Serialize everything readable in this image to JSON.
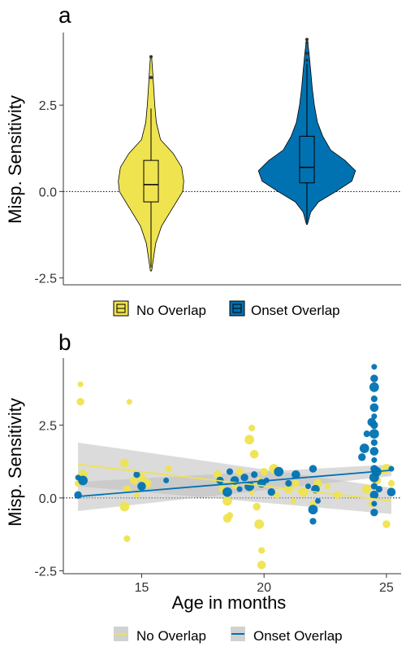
{
  "colors": {
    "no_overlap": "#EFE350",
    "onset_overlap": "#0072B2",
    "ribbon": "#BEBEBE"
  },
  "chart_data": [
    {
      "panel": "a",
      "type": "violin",
      "ylabel": "Misp. Sensitivity",
      "ylim": [
        -2.7,
        4.6
      ],
      "yticks": [
        "-2.5",
        "0.0",
        "2.5"
      ],
      "ytick_values": [
        -2.5,
        0.0,
        2.5
      ],
      "reference_line": 0,
      "legend": [
        "No Overlap",
        "Onset Overlap"
      ],
      "legend_position": "bottom",
      "series": [
        {
          "name": "No Overlap",
          "box": {
            "q1": -0.3,
            "median": 0.2,
            "q3": 0.9,
            "whisker_low": -2.2,
            "whisker_high": 2.4
          },
          "outliers": [
            3.3,
            3.9
          ],
          "violin_profile": [
            [
              -2.3,
              0.01
            ],
            [
              -2.0,
              0.04
            ],
            [
              -1.5,
              0.09
            ],
            [
              -1.0,
              0.2
            ],
            [
              -0.5,
              0.4
            ],
            [
              0.0,
              0.6
            ],
            [
              0.3,
              0.62
            ],
            [
              0.7,
              0.58
            ],
            [
              1.1,
              0.42
            ],
            [
              1.5,
              0.18
            ],
            [
              2.0,
              0.1
            ],
            [
              2.5,
              0.07
            ],
            [
              3.0,
              0.05
            ],
            [
              3.5,
              0.03
            ],
            [
              3.9,
              0.01
            ]
          ]
        },
        {
          "name": "Onset Overlap",
          "box": {
            "q1": 0.25,
            "median": 0.7,
            "q3": 1.6,
            "whisker_low": -0.9,
            "whisker_high": 3.7
          },
          "outliers": [
            3.8,
            4.0,
            4.3,
            4.4
          ],
          "violin_profile": [
            [
              -0.95,
              0.01
            ],
            [
              -0.6,
              0.07
            ],
            [
              -0.3,
              0.22
            ],
            [
              0.0,
              0.55
            ],
            [
              0.3,
              0.85
            ],
            [
              0.6,
              0.92
            ],
            [
              0.9,
              0.72
            ],
            [
              1.2,
              0.45
            ],
            [
              1.6,
              0.3
            ],
            [
              2.0,
              0.2
            ],
            [
              2.5,
              0.14
            ],
            [
              3.0,
              0.1
            ],
            [
              3.5,
              0.07
            ],
            [
              4.0,
              0.04
            ],
            [
              4.4,
              0.01
            ]
          ]
        }
      ]
    },
    {
      "panel": "b",
      "type": "scatter",
      "xlabel": "Age in months",
      "ylabel": "Misp. Sensitivity",
      "xlim": [
        11.8,
        25.6
      ],
      "ylim": [
        -2.6,
        4.8
      ],
      "xticks": [
        "15",
        "20",
        "25"
      ],
      "xtick_values": [
        15,
        20,
        25
      ],
      "yticks": [
        "-2.5",
        "0.0",
        "2.5"
      ],
      "ytick_values": [
        -2.5,
        0.0,
        2.5
      ],
      "reference_line": 0,
      "legend": [
        "No Overlap",
        "Onset Overlap"
      ],
      "legend_position": "bottom",
      "series": [
        {
          "name": "No Overlap",
          "regression": {
            "x": [
              12.4,
              25.2
            ],
            "y": [
              1.15,
              -0.1
            ],
            "ci_lower": [
              0.4,
              -0.55
            ],
            "ci_upper": [
              1.9,
              0.35
            ]
          },
          "points": [
            [
              12.5,
              3.9
            ],
            [
              12.5,
              3.3
            ],
            [
              12.6,
              0.8
            ],
            [
              12.4,
              0.5
            ],
            [
              14.3,
              1.2
            ],
            [
              14.5,
              3.3
            ],
            [
              14.4,
              0.3
            ],
            [
              14.3,
              -0.3
            ],
            [
              14.4,
              -1.4
            ],
            [
              14.7,
              0.6
            ],
            [
              14.8,
              0.1
            ],
            [
              15.0,
              0.7
            ],
            [
              15.2,
              0.5
            ],
            [
              16.1,
              1.0
            ],
            [
              18.1,
              0.8
            ],
            [
              18.2,
              0.5
            ],
            [
              18.3,
              0.3
            ],
            [
              18.5,
              -0.1
            ],
            [
              18.6,
              -0.6
            ],
            [
              18.5,
              -0.7
            ],
            [
              18.8,
              0.4
            ],
            [
              19.0,
              0.9
            ],
            [
              19.4,
              2.0
            ],
            [
              19.5,
              2.4
            ],
            [
              19.6,
              1.5
            ],
            [
              19.5,
              0.2
            ],
            [
              19.7,
              -0.3
            ],
            [
              19.8,
              -0.9
            ],
            [
              19.9,
              -1.8
            ],
            [
              19.9,
              -2.3
            ],
            [
              19.8,
              0.6
            ],
            [
              20.0,
              0.9
            ],
            [
              20.4,
              1.0
            ],
            [
              20.5,
              0.1
            ],
            [
              21.0,
              0.3
            ],
            [
              21.2,
              -0.1
            ],
            [
              21.3,
              0.5
            ],
            [
              21.6,
              0.2
            ],
            [
              22.0,
              -0.2
            ],
            [
              22.2,
              0.5
            ],
            [
              22.6,
              0.4
            ],
            [
              23.0,
              0.1
            ],
            [
              24.2,
              0.3
            ],
            [
              24.4,
              -0.2
            ],
            [
              24.6,
              0.6
            ],
            [
              24.8,
              0.9
            ],
            [
              25.0,
              -0.9
            ],
            [
              25.0,
              1.0
            ],
            [
              25.2,
              0.5
            ]
          ]
        },
        {
          "name": "Onset Overlap",
          "regression": {
            "x": [
              12.4,
              25.2
            ],
            "y": [
              0.05,
              0.95
            ],
            "ci_lower": [
              -0.45,
              0.75
            ],
            "ci_upper": [
              0.55,
              1.15
            ]
          },
          "points": [
            [
              12.4,
              0.7
            ],
            [
              12.4,
              0.1
            ],
            [
              12.6,
              0.6
            ],
            [
              14.8,
              0.8
            ],
            [
              15.0,
              0.4
            ],
            [
              16.0,
              0.6
            ],
            [
              18.2,
              0.6
            ],
            [
              18.5,
              0.2
            ],
            [
              18.6,
              0.9
            ],
            [
              18.8,
              0.6
            ],
            [
              19.0,
              0.3
            ],
            [
              19.2,
              0.7
            ],
            [
              19.4,
              0.4
            ],
            [
              19.6,
              0.8
            ],
            [
              19.9,
              0.5
            ],
            [
              20.1,
              0.6
            ],
            [
              20.3,
              0.2
            ],
            [
              20.6,
              0.9
            ],
            [
              21.0,
              0.5
            ],
            [
              21.3,
              0.8
            ],
            [
              21.8,
              0.4
            ],
            [
              22.0,
              1.0
            ],
            [
              22.0,
              -0.4
            ],
            [
              22.0,
              -0.8
            ],
            [
              22.1,
              0.3
            ],
            [
              22.2,
              -0.1
            ],
            [
              24.0,
              1.4
            ],
            [
              24.1,
              1.7
            ],
            [
              24.2,
              2.2
            ],
            [
              24.4,
              2.6
            ],
            [
              24.5,
              4.5
            ],
            [
              24.5,
              4.1
            ],
            [
              24.5,
              3.8
            ],
            [
              24.5,
              3.4
            ],
            [
              24.5,
              3.1
            ],
            [
              24.5,
              2.8
            ],
            [
              24.5,
              2.5
            ],
            [
              24.5,
              2.2
            ],
            [
              24.5,
              1.9
            ],
            [
              24.5,
              1.6
            ],
            [
              24.5,
              1.3
            ],
            [
              24.5,
              1.0
            ],
            [
              24.5,
              0.7
            ],
            [
              24.5,
              0.4
            ],
            [
              24.5,
              0.1
            ],
            [
              24.5,
              -0.2
            ],
            [
              24.5,
              -0.5
            ],
            [
              24.6,
              0.9
            ],
            [
              24.7,
              0.3
            ],
            [
              25.2,
              0.2
            ],
            [
              25.2,
              1.0
            ]
          ]
        }
      ]
    }
  ]
}
